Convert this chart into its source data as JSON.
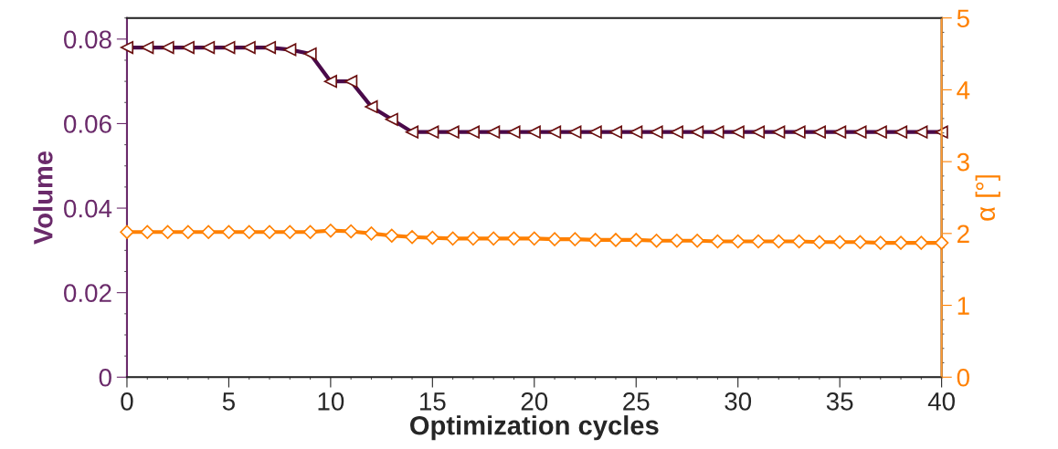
{
  "chart_data": {
    "type": "line",
    "xlabel": "Optimization cycles",
    "ylabel": "Volume",
    "y2label": "α [°]",
    "x": [
      0,
      1,
      2,
      3,
      4,
      5,
      6,
      7,
      8,
      9,
      10,
      11,
      12,
      13,
      14,
      15,
      16,
      17,
      18,
      19,
      20,
      21,
      22,
      23,
      24,
      25,
      26,
      27,
      28,
      29,
      30,
      31,
      32,
      33,
      34,
      35,
      36,
      37,
      38,
      39,
      40
    ],
    "series": [
      {
        "color": "#4a0a4a",
        "marker": "triangle",
        "values": [
          0.078,
          0.078,
          0.078,
          0.078,
          0.078,
          0.078,
          0.078,
          0.078,
          0.0775,
          0.0765,
          0.07,
          0.07,
          0.064,
          0.061,
          0.058,
          0.058,
          0.058,
          0.058,
          0.058,
          0.058,
          0.058,
          0.058,
          0.058,
          0.058,
          0.058,
          0.058,
          0.058,
          0.058,
          0.058,
          0.058,
          0.058,
          0.058,
          0.058,
          0.058,
          0.058,
          0.058,
          0.058,
          0.058,
          0.058,
          0.058,
          0.058
        ]
      },
      {
        "color": "#ff8000",
        "marker": "diamond",
        "axis": "y2",
        "values": [
          2.02,
          2.02,
          2.02,
          2.02,
          2.02,
          2.02,
          2.02,
          2.02,
          2.02,
          2.02,
          2.04,
          2.03,
          2.0,
          1.97,
          1.95,
          1.94,
          1.93,
          1.93,
          1.93,
          1.93,
          1.93,
          1.92,
          1.92,
          1.91,
          1.91,
          1.91,
          1.9,
          1.9,
          1.9,
          1.89,
          1.89,
          1.89,
          1.89,
          1.89,
          1.88,
          1.88,
          1.88,
          1.87,
          1.87,
          1.87,
          1.87
        ]
      }
    ],
    "xlim": [
      0,
      40
    ],
    "xticks": [
      0,
      5,
      10,
      15,
      20,
      25,
      30,
      35,
      40
    ],
    "ylim": [
      0,
      0.085
    ],
    "yticks": [
      {
        "value": 0,
        "label": "0"
      },
      0.02,
      0.04,
      0.06,
      0.08
    ],
    "y2lim": [
      0,
      5
    ],
    "y2ticks": [
      0,
      1,
      2,
      3,
      4,
      5
    ],
    "grid": false,
    "legend": false
  }
}
